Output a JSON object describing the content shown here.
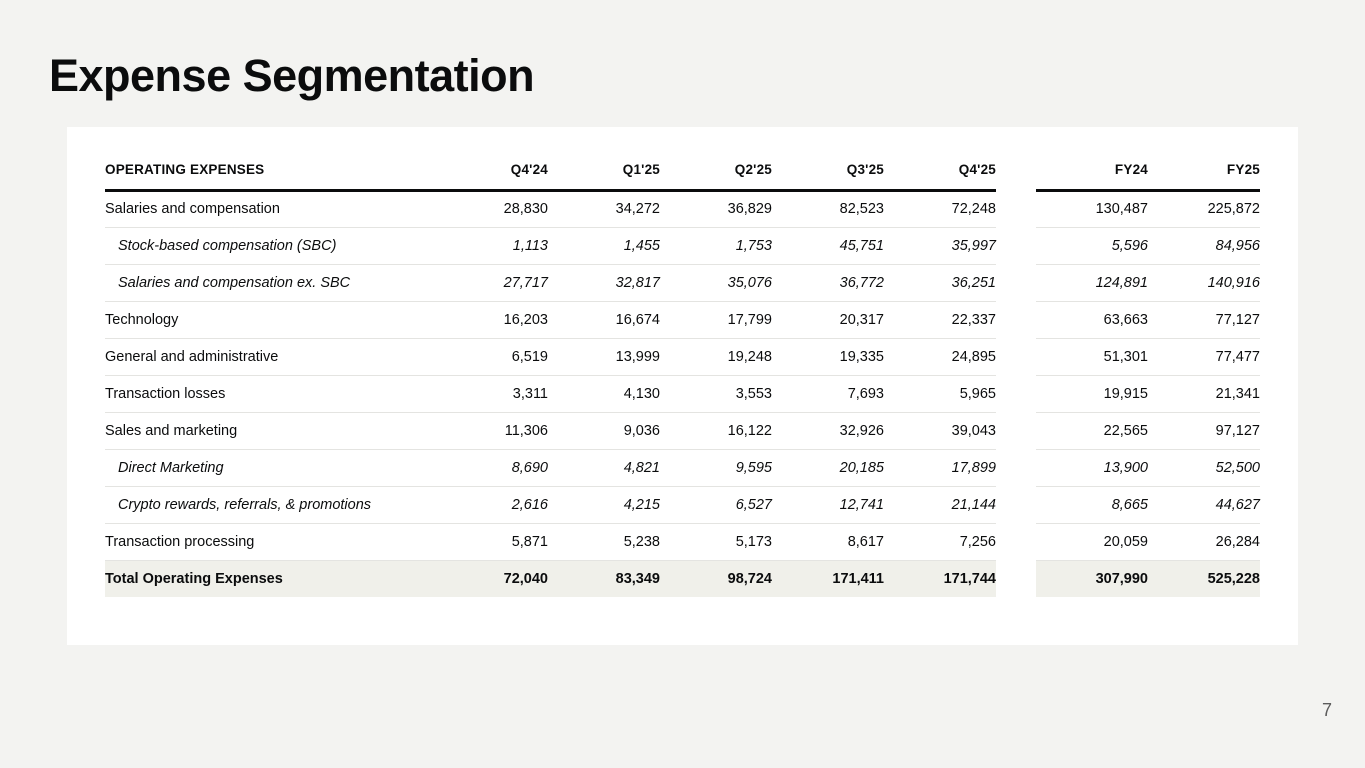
{
  "page": {
    "title": "Expense Segmentation",
    "page_number": "7"
  },
  "table": {
    "header": {
      "label": "OPERATING EXPENSES",
      "quarter_columns": [
        "Q4'24",
        "Q1'25",
        "Q2'25",
        "Q3'25",
        "Q4'25"
      ],
      "fy_columns": [
        "FY24",
        "FY25"
      ]
    },
    "rows": [
      {
        "label": "Salaries and compensation",
        "style": "normal",
        "quarters": [
          "28,830",
          "34,272",
          "36,829",
          "82,523",
          "72,248"
        ],
        "fy": [
          "130,487",
          "225,872"
        ]
      },
      {
        "label": "Stock-based compensation (SBC)",
        "style": "sub",
        "quarters": [
          "1,113",
          "1,455",
          "1,753",
          "45,751",
          "35,997"
        ],
        "fy": [
          "5,596",
          "84,956"
        ]
      },
      {
        "label": "Salaries and compensation ex. SBC",
        "style": "sub",
        "quarters": [
          "27,717",
          "32,817",
          "35,076",
          "36,772",
          "36,251"
        ],
        "fy": [
          "124,891",
          "140,916"
        ]
      },
      {
        "label": "Technology",
        "style": "normal",
        "quarters": [
          "16,203",
          "16,674",
          "17,799",
          "20,317",
          "22,337"
        ],
        "fy": [
          "63,663",
          "77,127"
        ]
      },
      {
        "label": "General and administrative",
        "style": "normal",
        "quarters": [
          "6,519",
          "13,999",
          "19,248",
          "19,335",
          "24,895"
        ],
        "fy": [
          "51,301",
          "77,477"
        ]
      },
      {
        "label": "Transaction losses",
        "style": "normal",
        "quarters": [
          "3,311",
          "4,130",
          "3,553",
          "7,693",
          "5,965"
        ],
        "fy": [
          "19,915",
          "21,341"
        ]
      },
      {
        "label": "Sales and marketing",
        "style": "normal",
        "quarters": [
          "11,306",
          "9,036",
          "16,122",
          "32,926",
          "39,043"
        ],
        "fy": [
          "22,565",
          "97,127"
        ]
      },
      {
        "label": "Direct Marketing",
        "style": "sub",
        "quarters": [
          "8,690",
          "4,821",
          "9,595",
          "20,185",
          "17,899"
        ],
        "fy": [
          "13,900",
          "52,500"
        ]
      },
      {
        "label": "Crypto rewards, referrals, & promotions",
        "style": "sub",
        "quarters": [
          "2,616",
          "4,215",
          "6,527",
          "12,741",
          "21,144"
        ],
        "fy": [
          "8,665",
          "44,627"
        ]
      },
      {
        "label": "Transaction processing",
        "style": "normal",
        "quarters": [
          "5,871",
          "5,238",
          "5,173",
          "8,617",
          "7,256"
        ],
        "fy": [
          "20,059",
          "26,284"
        ]
      },
      {
        "label": "Total Operating Expenses",
        "style": "total",
        "quarters": [
          "72,040",
          "83,349",
          "98,724",
          "171,411",
          "171,744"
        ],
        "fy": [
          "307,990",
          "525,228"
        ]
      }
    ]
  }
}
